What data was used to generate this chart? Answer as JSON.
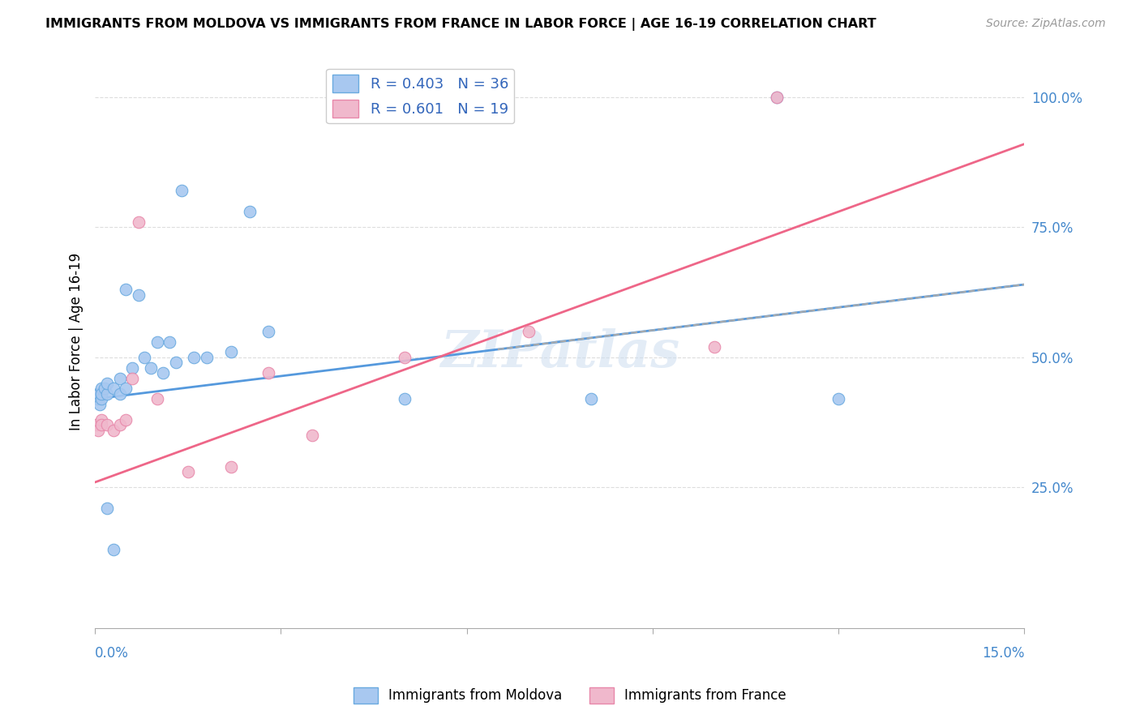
{
  "title": "IMMIGRANTS FROM MOLDOVA VS IMMIGRANTS FROM FRANCE IN LABOR FORCE | AGE 16-19 CORRELATION CHART",
  "source": "Source: ZipAtlas.com",
  "ylabel": "In Labor Force | Age 16-19",
  "ytick_values": [
    0.25,
    0.5,
    0.75,
    1.0
  ],
  "xlim": [
    0.0,
    0.15
  ],
  "ylim": [
    -0.02,
    1.08
  ],
  "moldova_color": "#a8c8f0",
  "moldova_edge_color": "#6aaae0",
  "france_color": "#f0b8cc",
  "france_edge_color": "#e888aa",
  "moldova_line_color": "#5599dd",
  "france_line_color": "#ee6688",
  "grid_color": "#dddddd",
  "watermark": "ZIPatlas",
  "moldova_R": 0.403,
  "moldova_N": 36,
  "france_R": 0.601,
  "france_N": 19,
  "moldova_x": [
    0.0002,
    0.0004,
    0.0005,
    0.0006,
    0.0008,
    0.001,
    0.001,
    0.001,
    0.0015,
    0.002,
    0.002,
    0.002,
    0.003,
    0.003,
    0.004,
    0.004,
    0.005,
    0.005,
    0.006,
    0.007,
    0.008,
    0.009,
    0.01,
    0.011,
    0.012,
    0.013,
    0.014,
    0.016,
    0.018,
    0.022,
    0.025,
    0.028,
    0.05,
    0.08,
    0.11,
    0.12
  ],
  "moldova_y": [
    0.42,
    0.43,
    0.42,
    0.43,
    0.41,
    0.42,
    0.44,
    0.43,
    0.44,
    0.43,
    0.45,
    0.21,
    0.44,
    0.13,
    0.43,
    0.46,
    0.44,
    0.63,
    0.48,
    0.62,
    0.5,
    0.48,
    0.53,
    0.47,
    0.53,
    0.49,
    0.82,
    0.5,
    0.5,
    0.51,
    0.78,
    0.55,
    0.42,
    0.42,
    1.0,
    0.42
  ],
  "france_x": [
    0.0003,
    0.0005,
    0.001,
    0.001,
    0.002,
    0.003,
    0.004,
    0.005,
    0.006,
    0.007,
    0.01,
    0.015,
    0.022,
    0.028,
    0.035,
    0.05,
    0.07,
    0.1,
    0.11
  ],
  "france_y": [
    0.37,
    0.36,
    0.38,
    0.37,
    0.37,
    0.36,
    0.37,
    0.38,
    0.46,
    0.76,
    0.42,
    0.28,
    0.29,
    0.47,
    0.35,
    0.5,
    0.55,
    0.52,
    1.0
  ],
  "moldova_line_x0": 0.0,
  "moldova_line_x1": 0.15,
  "moldova_line_y0": 0.42,
  "moldova_line_y1": 0.64,
  "france_line_x0": 0.0,
  "france_line_x1": 0.15,
  "france_line_y0": 0.26,
  "france_line_y1": 0.91
}
